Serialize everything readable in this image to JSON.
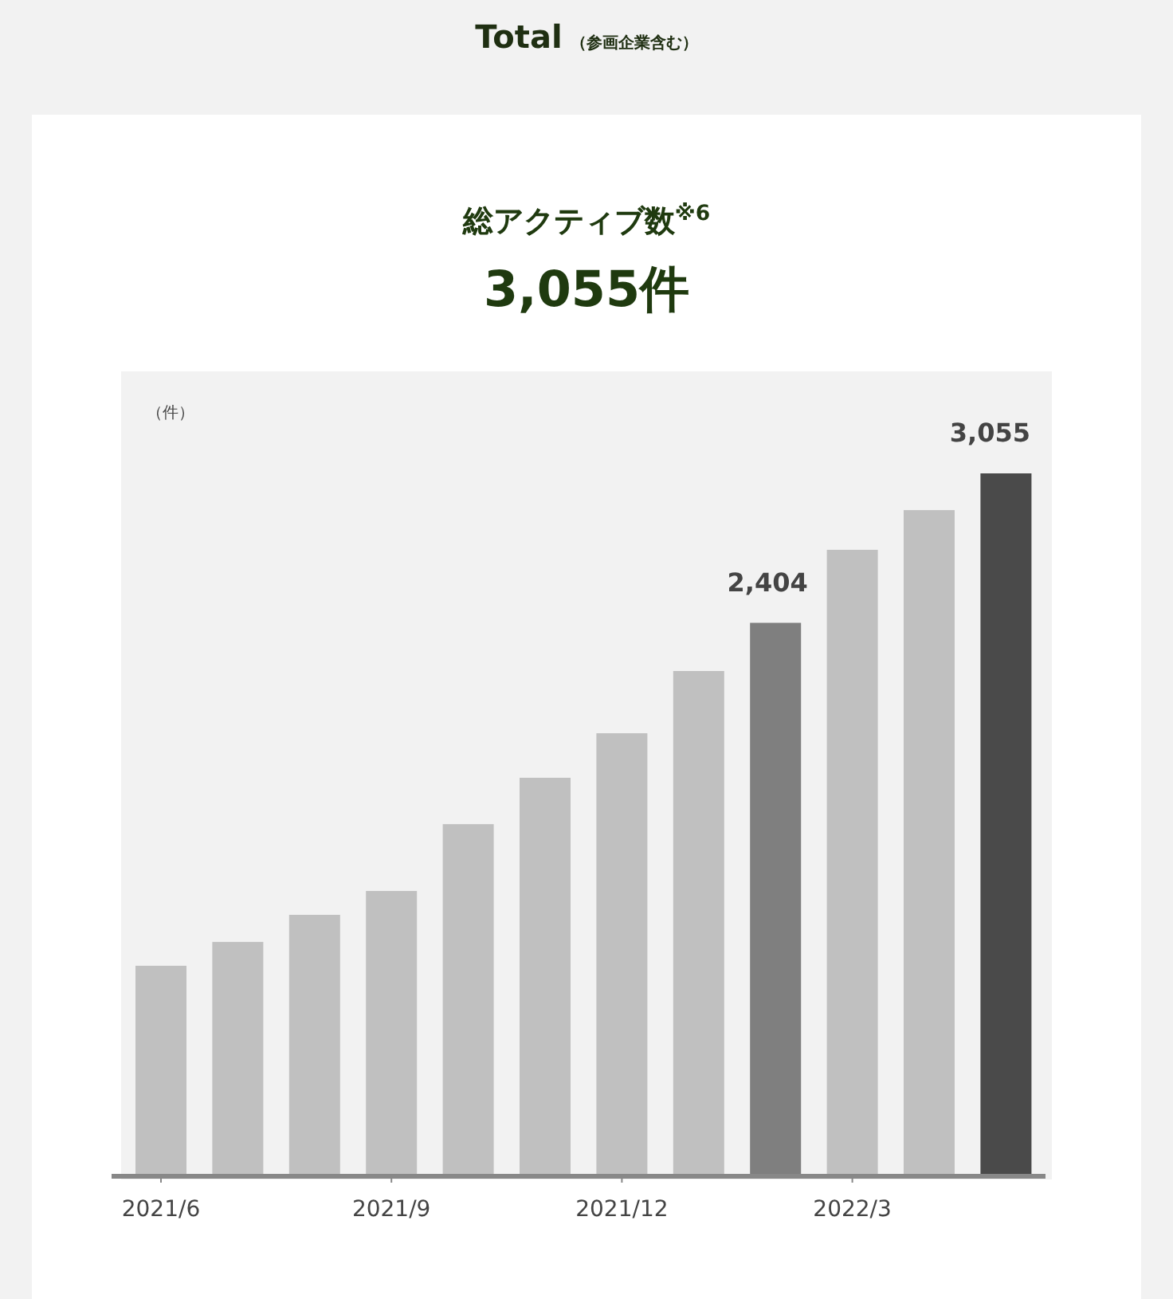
{
  "chart_data": {
    "type": "bar",
    "title": "Total",
    "subtitle": "（参画企業含む）",
    "annotations": [
      "総アクティブ数$^{※6}$",
      "3,055件"
    ],
    "ylabel": "（件）",
    "categories": [
      "2021/6",
      null,
      null,
      "2021/9",
      null,
      null,
      "2021/12",
      null,
      null,
      "2022/3",
      null,
      null
    ],
    "values": [
      910,
      1014,
      1132,
      1236,
      1527,
      1729,
      1923,
      2194,
      2404,
      2722,
      2895,
      3055
    ],
    "colors": [
      "#c0c0c0",
      "#c0c0c0",
      "#c0c0c0",
      "#c0c0c0",
      "#c0c0c0",
      "#c0c0c0",
      "#c0c0c0",
      "#c0c0c0",
      "#7f7f7f",
      "#c0c0c0",
      "#c0c0c0",
      "#4a4a4a"
    ],
    "value_labels": [
      null,
      null,
      null,
      null,
      null,
      null,
      null,
      null,
      "2,404",
      null,
      null,
      "3,055"
    ]
  }
}
